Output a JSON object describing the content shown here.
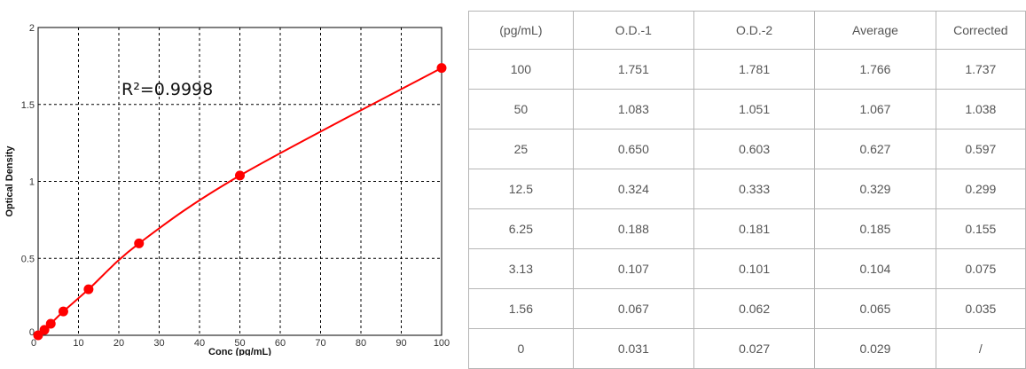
{
  "chart_data": {
    "type": "line",
    "title": "",
    "xlabel": "Conc (pg/mL)",
    "ylabel": "Optical Density",
    "xlim": [
      0,
      100
    ],
    "ylim": [
      0,
      2
    ],
    "x_ticks": [
      0,
      10,
      20,
      30,
      40,
      50,
      60,
      70,
      80,
      90,
      100
    ],
    "y_ticks": [
      0,
      0.5,
      1,
      1.5,
      2
    ],
    "grid": true,
    "annotation": "R²=0.9998",
    "line_color": "#ff0000",
    "series": [
      {
        "x": [
          0,
          1.56,
          3.13,
          6.25,
          12.5,
          25,
          50,
          100
        ],
        "y": [
          0.0,
          0.035,
          0.075,
          0.155,
          0.299,
          0.597,
          1.038,
          1.737
        ]
      }
    ]
  },
  "table": {
    "headers": [
      "(pg/mL)",
      "O.D.-1",
      "O.D.-2",
      "Average",
      "Corrected"
    ],
    "rows": [
      [
        "100",
        "1.751",
        "1.781",
        "1.766",
        "1.737"
      ],
      [
        "50",
        "1.083",
        "1.051",
        "1.067",
        "1.038"
      ],
      [
        "25",
        "0.650",
        "0.603",
        "0.627",
        "0.597"
      ],
      [
        "12.5",
        "0.324",
        "0.333",
        "0.329",
        "0.299"
      ],
      [
        "6.25",
        "0.188",
        "0.181",
        "0.185",
        "0.155"
      ],
      [
        "3.13",
        "0.107",
        "0.101",
        "0.104",
        "0.075"
      ],
      [
        "1.56",
        "0.067",
        "0.062",
        "0.065",
        "0.035"
      ],
      [
        "0",
        "0.031",
        "0.027",
        "0.029",
        "/"
      ]
    ]
  }
}
